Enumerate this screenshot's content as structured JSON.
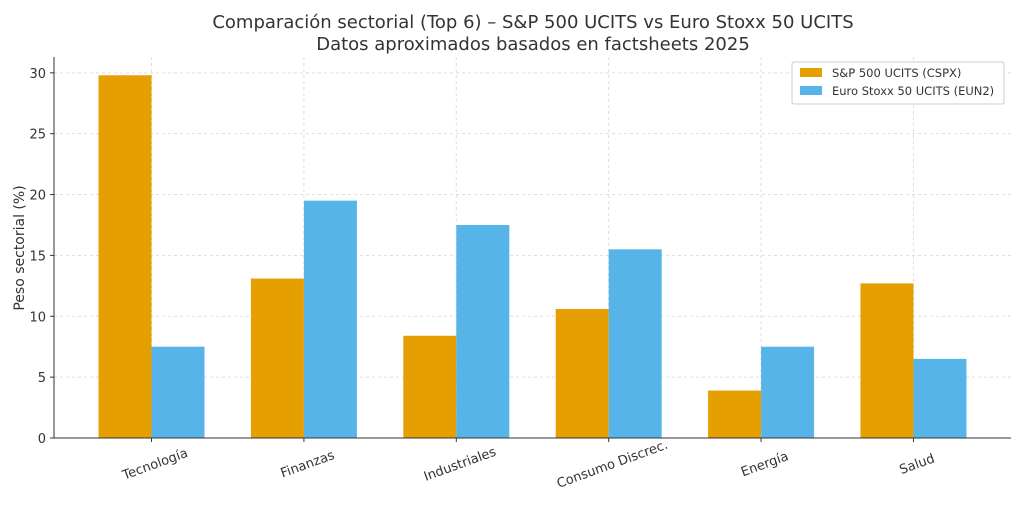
{
  "chart_data": {
    "type": "bar",
    "title": "Comparación sectorial (Top 6) – S&P 500 UCITS vs Euro Stoxx 50 UCITS",
    "subtitle": "Datos aproximados basados en factsheets 2025",
    "xlabel": "",
    "ylabel": "Peso sectorial (%)",
    "ylim": [
      0,
      31.3
    ],
    "yticks": [
      0,
      5,
      10,
      15,
      20,
      25,
      30
    ],
    "grid": true,
    "legend_position": "top-right",
    "categories": [
      "Tecnología",
      "Finanzas",
      "Industriales",
      "Consumo Discrec.",
      "Energía",
      "Salud"
    ],
    "series": [
      {
        "name": "S&P 500 UCITS (CSPX)",
        "color": "#E69F00",
        "values": [
          29.8,
          13.1,
          8.4,
          10.6,
          3.9,
          12.7
        ]
      },
      {
        "name": "Euro Stoxx 50 UCITS (EUN2)",
        "color": "#56B4E9",
        "values": [
          7.5,
          19.5,
          17.5,
          15.5,
          7.5,
          6.5
        ]
      }
    ]
  }
}
